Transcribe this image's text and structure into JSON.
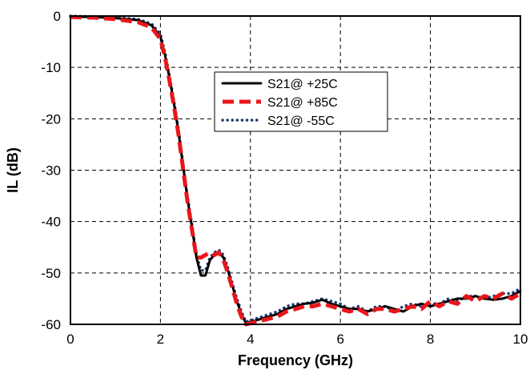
{
  "chart_data": {
    "type": "line",
    "title": "",
    "xlabel": "Frequency (GHz)",
    "ylabel": "IL (dB)",
    "xlim": [
      0,
      10
    ],
    "ylim": [
      -60,
      0
    ],
    "x_ticks": [
      0,
      2,
      4,
      6,
      8,
      10
    ],
    "y_ticks": [
      0,
      -10,
      -20,
      -30,
      -40,
      -50,
      -60
    ],
    "grid": true,
    "legend_position": "top-center",
    "series": [
      {
        "name": "S21@ +25C",
        "color": "#000000",
        "style": "solid",
        "x": [
          0,
          0.5,
          1.0,
          1.5,
          1.8,
          2.0,
          2.1,
          2.2,
          2.3,
          2.4,
          2.5,
          2.6,
          2.7,
          2.8,
          2.9,
          3.0,
          3.1,
          3.2,
          3.3,
          3.4,
          3.5,
          3.6,
          3.7,
          3.8,
          3.9,
          4.0,
          4.4,
          4.6,
          4.8,
          5.0,
          5.2,
          5.4,
          5.6,
          5.8,
          6.0,
          6.2,
          6.4,
          6.6,
          6.8,
          7.0,
          7.2,
          7.4,
          7.6,
          7.8,
          8.0,
          8.2,
          8.4,
          8.6,
          8.8,
          9.0,
          9.2,
          9.4,
          9.6,
          9.8,
          10.0
        ],
        "y": [
          -0.1,
          -0.2,
          -0.4,
          -0.8,
          -1.8,
          -4.0,
          -7.5,
          -12,
          -17,
          -22.5,
          -29,
          -35.5,
          -41,
          -47,
          -50.5,
          -50.5,
          -47.5,
          -46.5,
          -46,
          -47,
          -49.5,
          -52.5,
          -55.5,
          -58,
          -59.8,
          -61,
          -61,
          -58,
          -57,
          -56.5,
          -56,
          -55.8,
          -55.2,
          -56,
          -56.5,
          -57,
          -57,
          -57.5,
          -57,
          -56.5,
          -57,
          -57.5,
          -56.5,
          -56,
          -56.5,
          -56,
          -55.5,
          -55,
          -55,
          -54.5,
          -55,
          -55.2,
          -55,
          -54.5,
          -53.5
        ]
      },
      {
        "name": "S21@ +85C",
        "color": "#e8161b",
        "style": "dashed",
        "x": [
          0,
          0.5,
          1.0,
          1.5,
          1.8,
          2.0,
          2.1,
          2.2,
          2.3,
          2.4,
          2.5,
          2.6,
          2.7,
          2.8,
          2.9,
          3.0,
          3.1,
          3.2,
          3.3,
          3.4,
          3.5,
          3.6,
          3.7,
          3.8,
          3.9,
          4.0,
          4.4,
          4.6,
          4.8,
          5.0,
          5.2,
          5.4,
          5.6,
          5.8,
          6.0,
          6.2,
          6.4,
          6.6,
          6.8,
          7.0,
          7.2,
          7.4,
          7.6,
          7.8,
          8.0,
          8.2,
          8.4,
          8.6,
          8.8,
          9.0,
          9.2,
          9.4,
          9.6,
          9.8,
          10.0
        ],
        "y": [
          -0.2,
          -0.3,
          -0.6,
          -1.2,
          -2.2,
          -4.5,
          -8.0,
          -12.5,
          -17.5,
          -23,
          -29.5,
          -36,
          -41.5,
          -47,
          -47,
          -46.5,
          -46,
          -46.5,
          -46,
          -47.5,
          -50,
          -53,
          -56,
          -58.5,
          -60,
          -61,
          -61,
          -58.5,
          -57.5,
          -57,
          -56.5,
          -56.5,
          -56,
          -56.5,
          -57,
          -57.5,
          -57,
          -58,
          -57,
          -57,
          -57.5,
          -57,
          -56.5,
          -57,
          -55.5,
          -56.5,
          -55.5,
          -56,
          -54.5,
          -55.5,
          -54.5,
          -55,
          -54,
          -55,
          -54
        ]
      },
      {
        "name": "S21@ -55C",
        "color": "#1f3a73",
        "style": "dotted",
        "x": [
          0,
          0.5,
          1.0,
          1.5,
          1.8,
          2.0,
          2.1,
          2.2,
          2.3,
          2.4,
          2.5,
          2.6,
          2.7,
          2.8,
          2.9,
          3.0,
          3.1,
          3.2,
          3.3,
          3.4,
          3.5,
          3.6,
          3.7,
          3.8,
          3.9,
          4.0,
          4.4,
          4.6,
          4.8,
          5.0,
          5.2,
          5.4,
          5.6,
          5.8,
          6.0,
          6.2,
          6.4,
          6.6,
          6.8,
          7.0,
          7.2,
          7.4,
          7.6,
          7.8,
          8.0,
          8.2,
          8.4,
          8.6,
          8.8,
          9.0,
          9.2,
          9.4,
          9.6,
          9.8,
          10.0
        ],
        "y": [
          0,
          -0.1,
          -0.3,
          -0.6,
          -1.5,
          -3.5,
          -7.0,
          -11.5,
          -16.5,
          -22,
          -28.5,
          -35,
          -40.5,
          -46.5,
          -49.5,
          -49.5,
          -47,
          -46,
          -45.5,
          -46.5,
          -49,
          -52,
          -55,
          -57.5,
          -59.5,
          -61,
          -61,
          -57.5,
          -56.5,
          -56,
          -56,
          -55.5,
          -55,
          -55.5,
          -56,
          -57,
          -56.5,
          -57.5,
          -56.5,
          -56.5,
          -57.5,
          -56.5,
          -56,
          -56.5,
          -56,
          -56,
          -55,
          -55.5,
          -54.5,
          -54.5,
          -55,
          -54.5,
          -54,
          -54,
          -53
        ]
      }
    ]
  }
}
